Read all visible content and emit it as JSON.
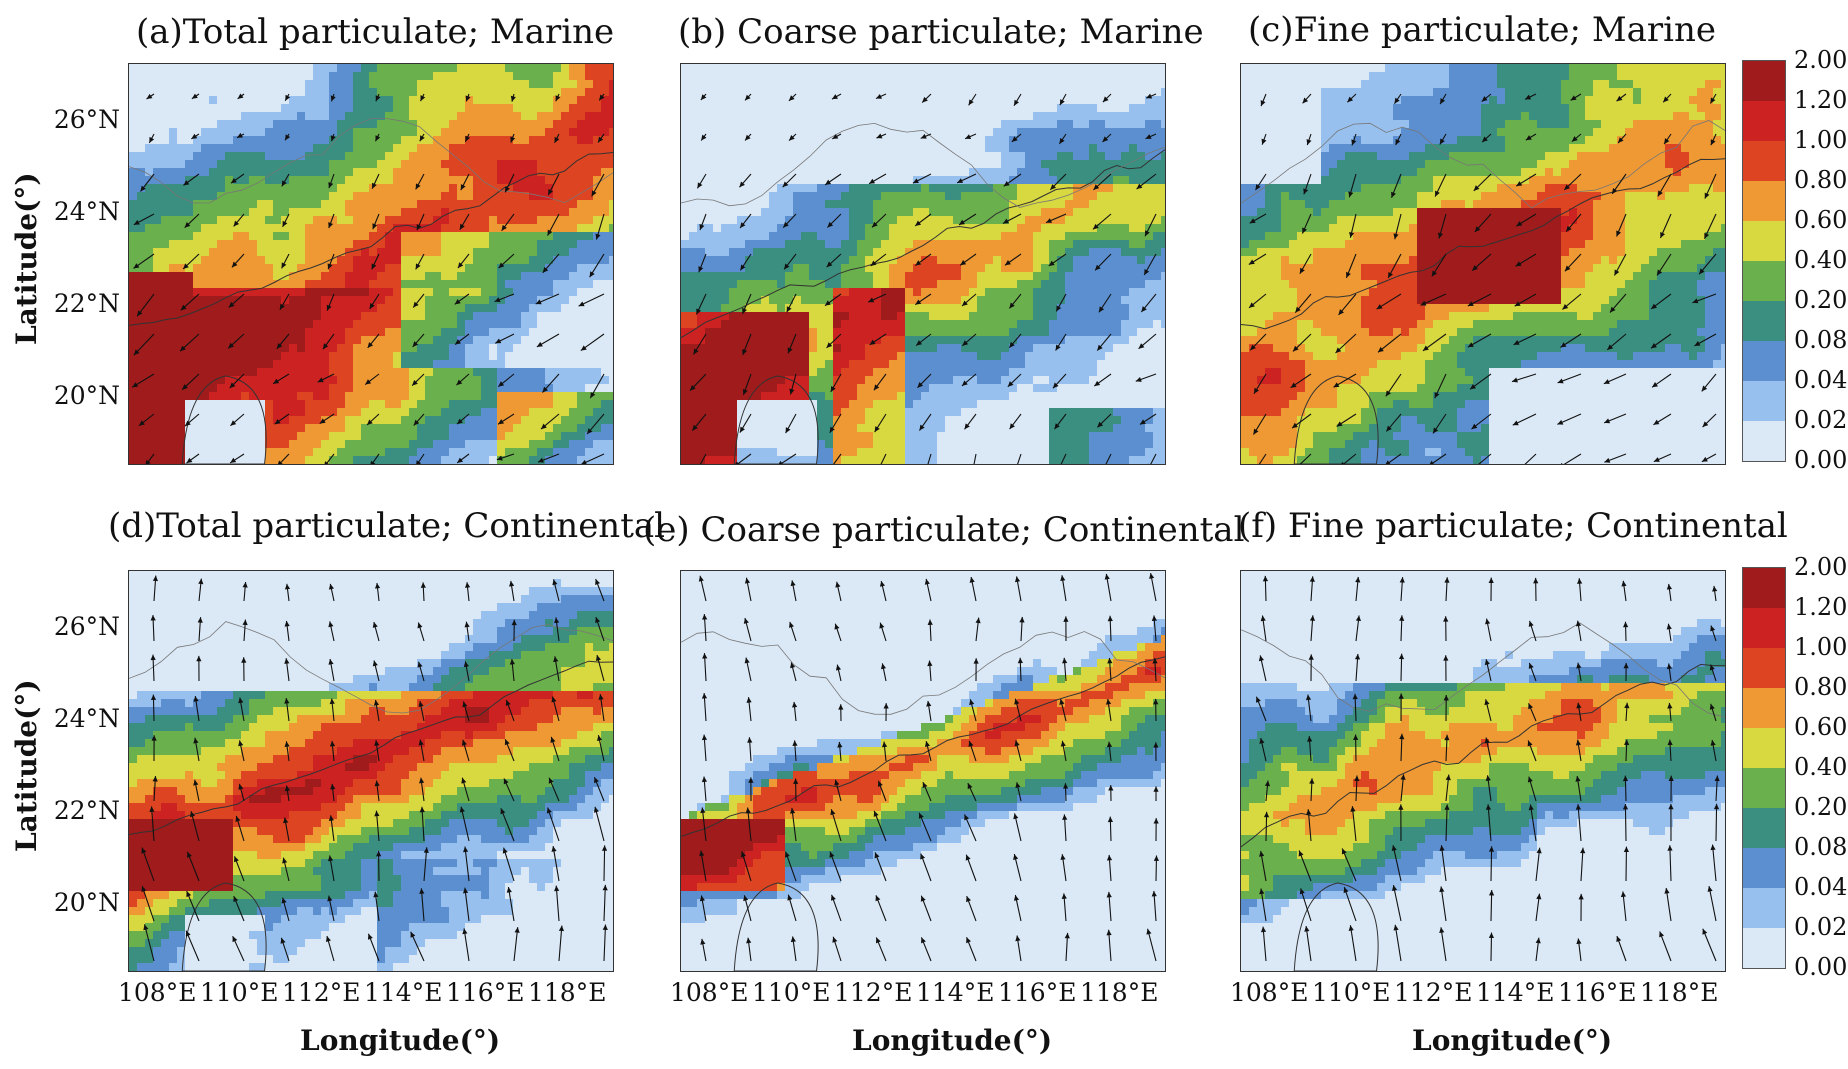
{
  "panels": [
    {
      "id": "a",
      "title": "(a)Total particulate;  Marine",
      "field": "total_marine"
    },
    {
      "id": "b",
      "title": "(b) Coarse particulate;  Marine",
      "field": "coarse_marine"
    },
    {
      "id": "c",
      "title": "(c)Fine particulate;  Marine",
      "field": "fine_marine"
    },
    {
      "id": "d",
      "title": "(d)Total particulate;  Continental",
      "field": "total_cont"
    },
    {
      "id": "e",
      "title": "(e) Coarse particulate;  Continental",
      "field": "coarse_cont"
    },
    {
      "id": "f",
      "title": "(f) Fine particulate;  Continental",
      "field": "fine_cont"
    }
  ],
  "latitude_ticks": [
    "26°N",
    "24°N",
    "22°N",
    "20°N"
  ],
  "longitude_ticks": [
    "108°E",
    "110°E",
    "112°E",
    "114°E",
    "116°E",
    "118°E"
  ],
  "latitude_title": "Latitude(°)",
  "longitude_title": "Longitude(°)",
  "colorbar": {
    "labels": [
      "2.00",
      "1.20",
      "1.00",
      "0.80",
      "0.60",
      "0.40",
      "0.20",
      "0.08",
      "0.04",
      "0.02",
      "0.00"
    ],
    "colors": [
      "#a01b1b",
      "#cc2222",
      "#dd4422",
      "#ee9933",
      "#d8d840",
      "#6ab04c",
      "#3a8f80",
      "#5b8fcf",
      "#98c0ee",
      "#dbe9f7"
    ]
  }
}
